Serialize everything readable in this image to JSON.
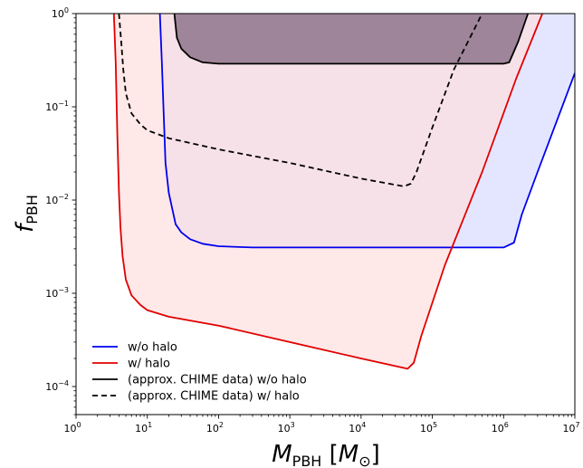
{
  "chart_data": {
    "type": "line",
    "title": "",
    "xlabel": {
      "base": "M",
      "sub": "PBH",
      "unit": "M",
      "unit_sub": "⊙"
    },
    "ylabel": {
      "base": "f",
      "sub": "PBH"
    },
    "xscale": "log",
    "yscale": "log",
    "xlim": [
      1,
      10000000
    ],
    "ylim": [
      5e-05,
      1
    ],
    "xticks": [
      {
        "value": 1,
        "label": "10",
        "exp": "0"
      },
      {
        "value": 10,
        "label": "10",
        "exp": "1"
      },
      {
        "value": 100,
        "label": "10",
        "exp": "2"
      },
      {
        "value": 1000,
        "label": "10",
        "exp": "3"
      },
      {
        "value": 10000,
        "label": "10",
        "exp": "4"
      },
      {
        "value": 100000,
        "label": "10",
        "exp": "5"
      },
      {
        "value": 1000000,
        "label": "10",
        "exp": "6"
      },
      {
        "value": 10000000,
        "label": "10",
        "exp": "7"
      }
    ],
    "yticks": [
      {
        "value": 0.0001,
        "label": "10",
        "exp": "−4"
      },
      {
        "value": 0.001,
        "label": "10",
        "exp": "−3"
      },
      {
        "value": 0.01,
        "label": "10",
        "exp": "−2"
      },
      {
        "value": 0.1,
        "label": "10",
        "exp": "−1"
      },
      {
        "value": 1,
        "label": "10",
        "exp": "0"
      }
    ],
    "grid": false,
    "legend_position": "lower-left",
    "series": [
      {
        "name": "w/o halo",
        "color": "#0000ee",
        "style": "solid",
        "fill": "#d8dcff",
        "x": [
          15,
          16,
          17,
          18,
          20,
          25,
          30,
          40,
          60,
          100,
          300,
          1000,
          10000,
          100000,
          1000000,
          1400000,
          1800000,
          3000000,
          10000000
        ],
        "y": [
          1,
          0.3,
          0.08,
          0.025,
          0.012,
          0.0055,
          0.0045,
          0.0038,
          0.0034,
          0.0032,
          0.0031,
          0.0031,
          0.0031,
          0.0031,
          0.0031,
          0.0035,
          0.007,
          0.02,
          0.23
        ]
      },
      {
        "name": "w/ halo",
        "color": "#e00000",
        "style": "solid",
        "fill": "#ffdede",
        "x": [
          3.4,
          3.6,
          3.8,
          4,
          4.2,
          4.5,
          5,
          6,
          8,
          10,
          20,
          100,
          1000,
          10000,
          45000,
          55000,
          70000,
          150000,
          500000,
          1500000,
          3500000
        ],
        "y": [
          1,
          0.3,
          0.05,
          0.012,
          0.005,
          0.0025,
          0.0014,
          0.00095,
          0.00075,
          0.00066,
          0.00056,
          0.00045,
          0.0003,
          0.0002,
          0.000155,
          0.00018,
          0.00035,
          0.002,
          0.02,
          0.2,
          1
        ]
      },
      {
        "name": "(approx. CHIME data) w/o halo",
        "color": "#000000",
        "style": "solid",
        "fill": "#9a8095",
        "x": [
          24,
          26,
          30,
          40,
          60,
          100,
          1000,
          10000,
          100000,
          1000000,
          1200000,
          1600000,
          2200000
        ],
        "y": [
          1,
          0.55,
          0.42,
          0.34,
          0.3,
          0.29,
          0.29,
          0.29,
          0.29,
          0.29,
          0.3,
          0.5,
          1
        ]
      },
      {
        "name": "(approx. CHIME data) w/ halo",
        "color": "#000000",
        "style": "dashed",
        "fill": "none",
        "x": [
          4,
          4.3,
          4.6,
          5,
          6,
          8,
          10,
          20,
          100,
          1000,
          10000,
          40000,
          50000,
          60000,
          100000,
          200000,
          500000
        ],
        "y": [
          1,
          0.5,
          0.25,
          0.14,
          0.085,
          0.065,
          0.056,
          0.046,
          0.035,
          0.025,
          0.017,
          0.014,
          0.015,
          0.02,
          0.06,
          0.25,
          1
        ]
      }
    ]
  }
}
